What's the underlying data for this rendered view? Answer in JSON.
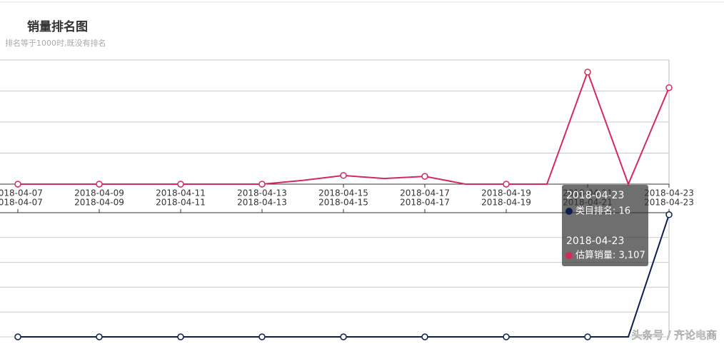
{
  "title": "销量排名图",
  "subtitle": "排名等于1000时,既没有排名",
  "chart_data": [
    {
      "type": "line",
      "categories": [
        "2018-04-07",
        null,
        "2018-04-09",
        null,
        "2018-04-11",
        null,
        "2018-04-13",
        null,
        "2018-04-15",
        null,
        "2018-04-17",
        null,
        "2018-04-19",
        null,
        "2018-04-21",
        null,
        "2018-04-23"
      ],
      "series": [
        {
          "name": "估算销量",
          "color": "#d42a5b",
          "values": [
            0,
            0,
            0,
            0,
            0,
            0,
            0,
            120,
            280,
            180,
            250,
            0,
            0,
            0,
            3610,
            0,
            3107
          ]
        }
      ],
      "ylim": [
        0,
        4000
      ],
      "yticks": [
        0,
        1000,
        2000,
        3000,
        4000
      ],
      "grid": true
    },
    {
      "type": "line",
      "categories": [
        "2018-04-07",
        null,
        "2018-04-09",
        null,
        "2018-04-11",
        null,
        "2018-04-13",
        null,
        "2018-04-15",
        null,
        "2018-04-17",
        null,
        "2018-04-19",
        null,
        "2018-04-21",
        null,
        "2018-04-23"
      ],
      "series": [
        {
          "name": "类目排名",
          "color": "#0d1f4f",
          "values": [
            1000,
            1000,
            1000,
            1000,
            1000,
            1000,
            1000,
            1000,
            1000,
            1000,
            1000,
            1000,
            1000,
            1000,
            1000,
            1000,
            16
          ]
        }
      ],
      "ylim": [
        0,
        1000
      ],
      "yticks": [
        0,
        200,
        400,
        600,
        800,
        1000
      ],
      "grid": true,
      "inverse": true
    }
  ],
  "tooltip": {
    "rank_date": "2018-04-23",
    "rank_text": "类目排名: 16",
    "sales_date": "2018-04-23",
    "sales_text": "估算销量: 3,107"
  },
  "watermark": "头条号 / 齐论电商"
}
